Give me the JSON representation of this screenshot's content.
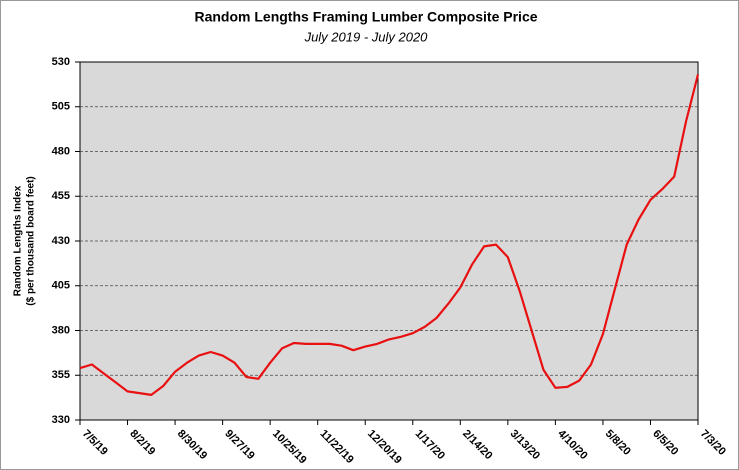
{
  "chart_data": {
    "type": "line",
    "title": "Random Lengths Framing Lumber Composite Price",
    "subtitle": "July 2019 - July 2020",
    "y_label": [
      "Random Lengths Index",
      "($ per thousand board feet)"
    ],
    "categories": [
      "7/5/19",
      null,
      null,
      null,
      "8/2/19",
      null,
      null,
      null,
      "8/30/19",
      null,
      null,
      null,
      "9/27/19",
      null,
      null,
      null,
      "10/25/19",
      null,
      null,
      null,
      "11/22/19",
      null,
      null,
      null,
      "12/20/19",
      null,
      null,
      null,
      "1/17/20",
      null,
      null,
      null,
      "2/14/20",
      null,
      null,
      null,
      "3/13/20",
      null,
      null,
      null,
      "4/10/20",
      null,
      null,
      null,
      "5/8/20",
      null,
      null,
      null,
      "6/5/20",
      null,
      null,
      null,
      "7/3/20"
    ],
    "series": [
      {
        "name": "Composite Price",
        "color": "#e81010",
        "values": [
          359,
          361,
          356,
          351,
          346,
          345,
          344,
          349,
          357,
          362,
          366,
          368,
          366,
          362,
          354,
          353,
          362,
          370,
          373,
          372.5,
          372.5,
          372.5,
          371.5,
          369,
          371,
          372.5,
          375,
          376.5,
          378.5,
          382,
          387,
          395,
          404,
          417,
          427,
          428,
          421,
          402,
          380,
          358,
          348,
          348.5,
          352,
          361,
          378,
          403,
          428,
          442,
          453,
          459,
          466,
          497,
          523
        ]
      }
    ],
    "ylim": [
      330,
      530
    ],
    "yticks": [
      330,
      355,
      380,
      405,
      430,
      455,
      480,
      505,
      530
    ],
    "grid": true
  }
}
